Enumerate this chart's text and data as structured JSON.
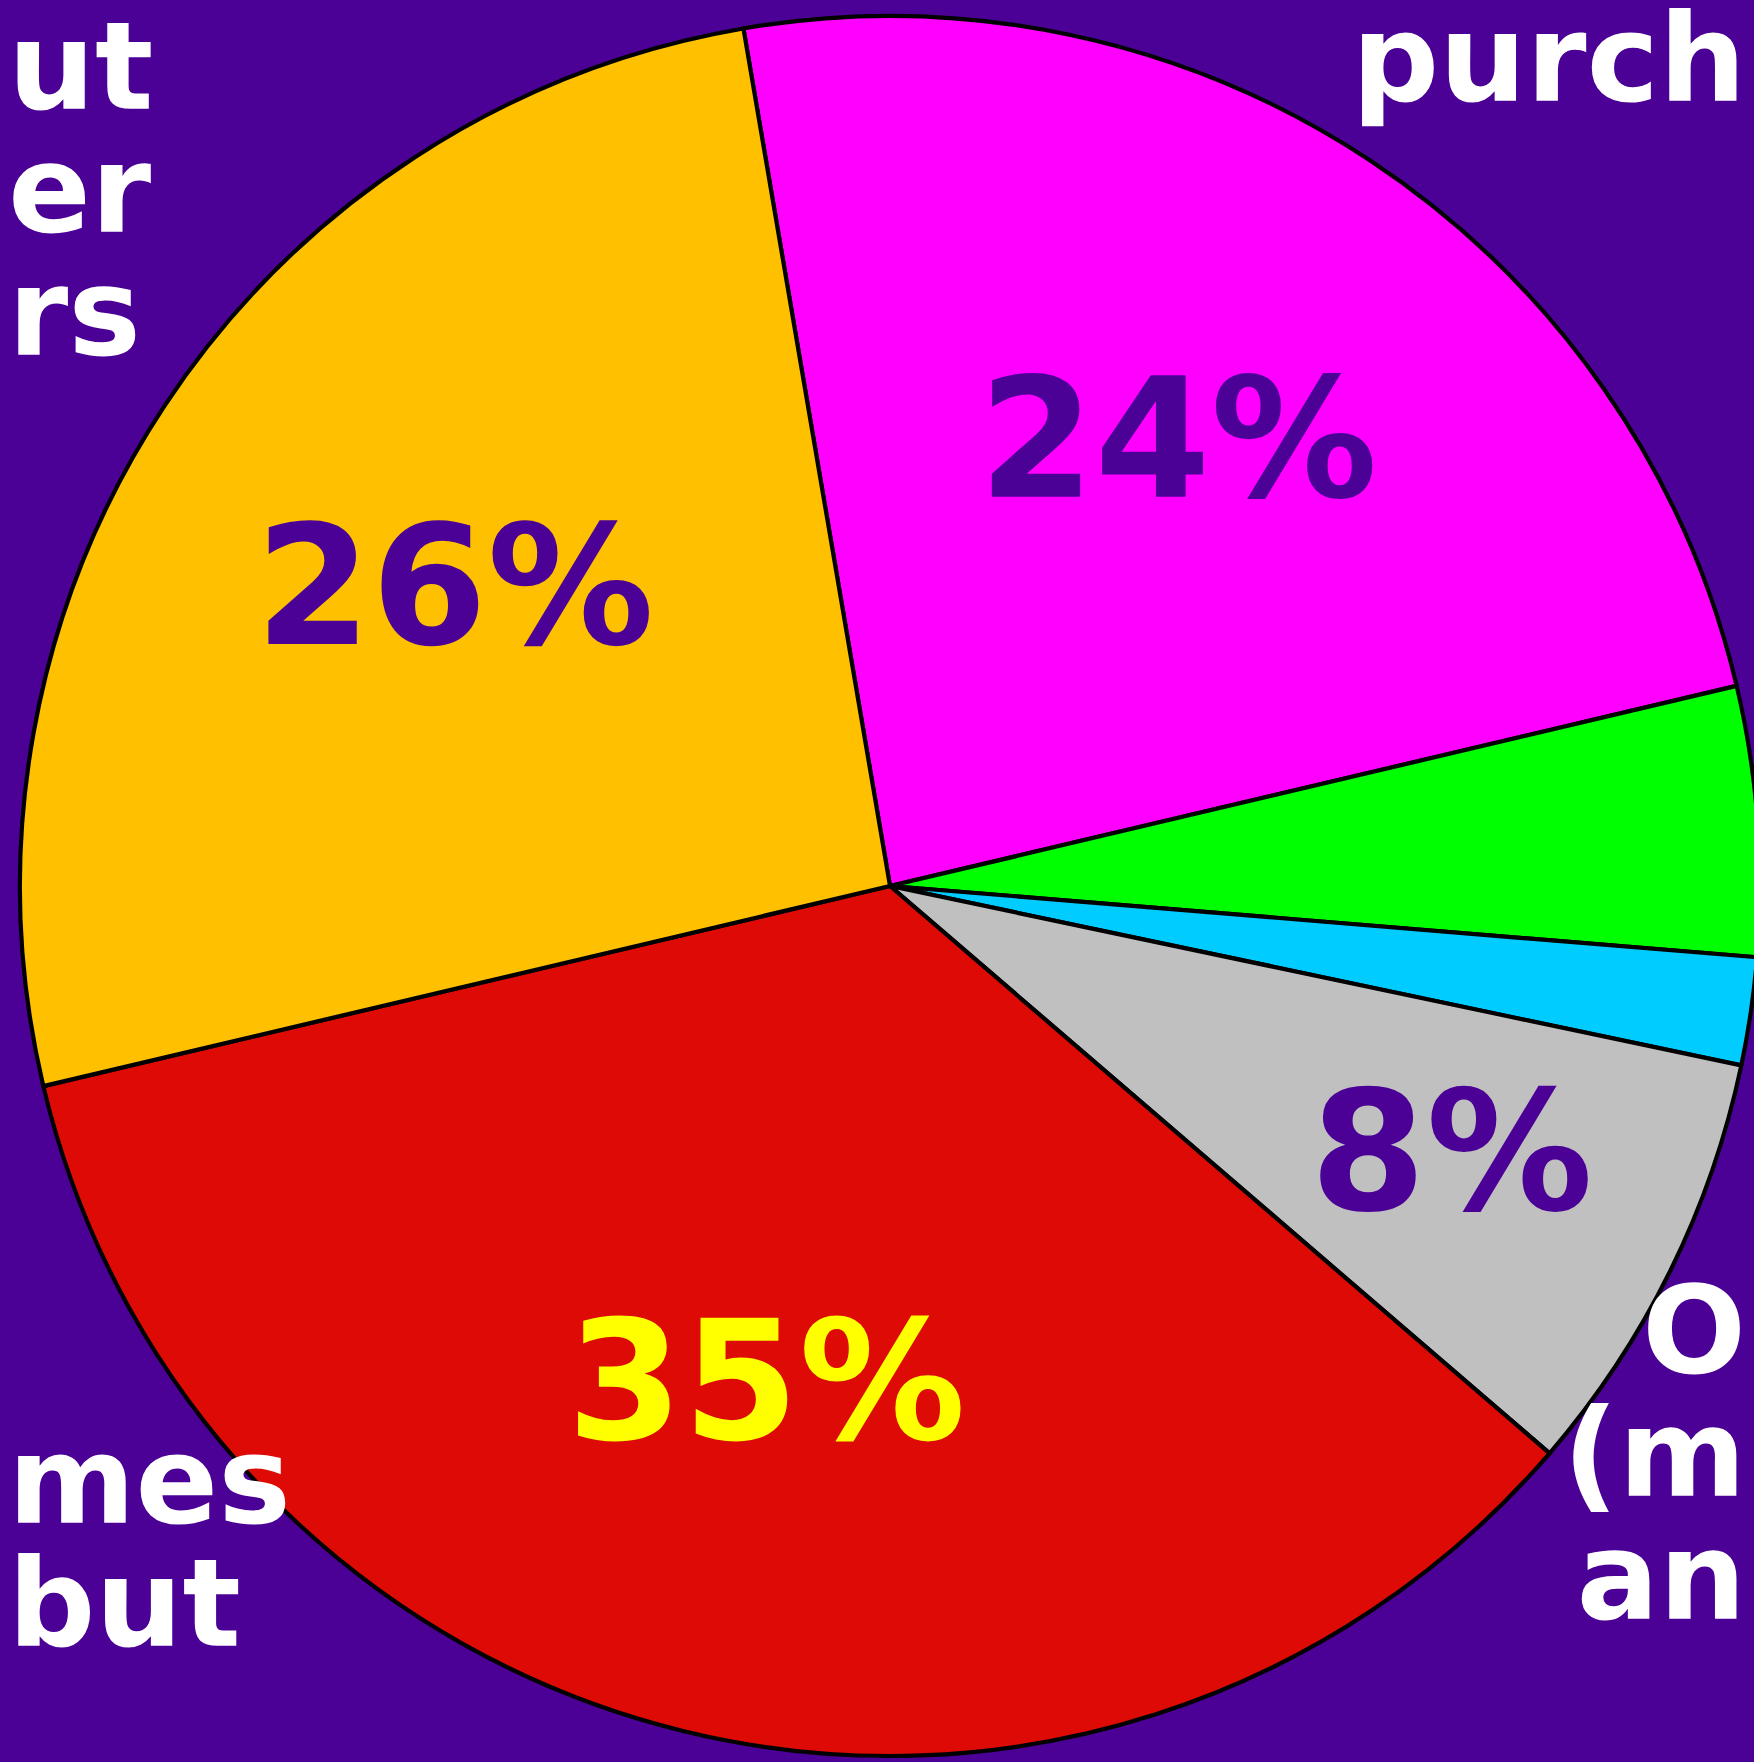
{
  "chart_data": {
    "type": "pie",
    "categories": [
      null,
      null,
      null,
      null,
      null,
      null
    ],
    "values": [
      24,
      5,
      2,
      8,
      35,
      26
    ],
    "colors": [
      "#ff00ff",
      "#00ff00",
      "#00ccff",
      "#c0c0c0",
      "#dd0a05",
      "#ffc000"
    ],
    "value_labels": [
      "24%",
      null,
      null,
      "8%",
      "35%",
      "26%"
    ],
    "annotations": [
      "ut\ner\nrs",
      "purch",
      "O\n(m\nan",
      "mes\nbut"
    ],
    "legend": false
  }
}
